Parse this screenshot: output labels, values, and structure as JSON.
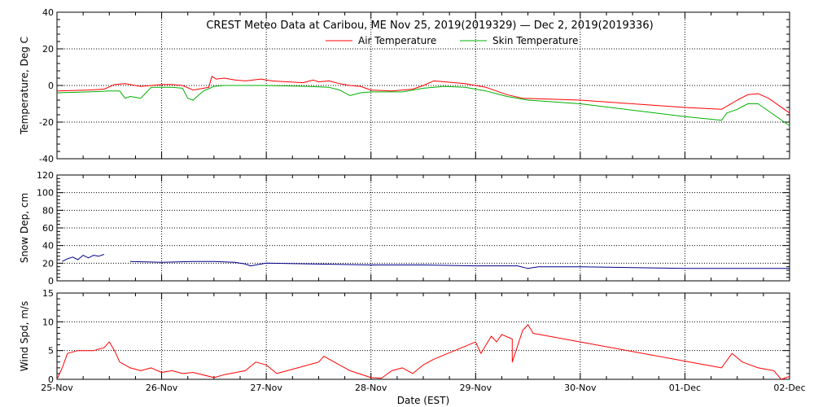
{
  "chart_data": {
    "title": "CREST Meteo Data at Caribou, ME   Nov 25, 2019(2019329) — Dec  2, 2019(2019336)",
    "xlabel": "Date (EST)",
    "x_ticks": [
      "25-Nov",
      "26-Nov",
      "27-Nov",
      "28-Nov",
      "29-Nov",
      "30-Nov",
      "01-Dec",
      "02-Dec"
    ],
    "x_unit": "days since 25-Nov",
    "xlim": [
      0,
      7
    ],
    "colors": {
      "air": "#ff0000",
      "skin": "#00b000",
      "snow": "#00008b",
      "wind": "#ff0000",
      "grid": "#000000"
    },
    "panels": [
      {
        "id": "temperature",
        "type": "line",
        "ylabel": "Temperature, Deg C",
        "ylim": [
          -40,
          40
        ],
        "yticks": [
          -40,
          -20,
          0,
          20,
          40
        ],
        "legend": "top-center",
        "series": [
          {
            "name": "Air Temperature",
            "color": "#ff0000",
            "points": [
              [
                0,
                -3
              ],
              [
                0.3,
                -2.5
              ],
              [
                0.45,
                -2
              ],
              [
                0.55,
                0.5
              ],
              [
                0.65,
                1
              ],
              [
                0.8,
                -0.5
              ],
              [
                0.9,
                0
              ],
              [
                1.0,
                0.5
              ],
              [
                1.1,
                0.5
              ],
              [
                1.2,
                0
              ],
              [
                1.3,
                -2.5
              ],
              [
                1.45,
                -1
              ],
              [
                1.48,
                5
              ],
              [
                1.52,
                3.5
              ],
              [
                1.6,
                4
              ],
              [
                1.7,
                3
              ],
              [
                1.8,
                2.5
              ],
              [
                1.95,
                3.5
              ],
              [
                2.05,
                2.5
              ],
              [
                2.2,
                2
              ],
              [
                2.35,
                1.5
              ],
              [
                2.45,
                3
              ],
              [
                2.5,
                2
              ],
              [
                2.6,
                2.5
              ],
              [
                2.7,
                1
              ],
              [
                2.8,
                0
              ],
              [
                2.9,
                -0.5
              ],
              [
                3.0,
                -2.5
              ],
              [
                3.2,
                -3
              ],
              [
                3.4,
                -2
              ],
              [
                3.5,
                0
              ],
              [
                3.6,
                2.5
              ],
              [
                3.7,
                2
              ],
              [
                3.8,
                1.5
              ],
              [
                3.9,
                1
              ],
              [
                4.0,
                0
              ],
              [
                4.1,
                -1
              ],
              [
                4.2,
                -3
              ],
              [
                4.3,
                -5
              ],
              [
                4.45,
                -7
              ],
              [
                5.0,
                -8
              ],
              [
                6.0,
                -12
              ],
              [
                6.35,
                -13
              ],
              [
                6.5,
                -8
              ],
              [
                6.6,
                -5
              ],
              [
                6.7,
                -4.5
              ],
              [
                6.8,
                -7
              ],
              [
                6.9,
                -11
              ],
              [
                7.0,
                -15
              ]
            ]
          },
          {
            "name": "Skin Temperature",
            "color": "#00b000",
            "points": [
              [
                0,
                -4
              ],
              [
                0.3,
                -3.5
              ],
              [
                0.5,
                -3
              ],
              [
                0.6,
                -3
              ],
              [
                0.65,
                -7
              ],
              [
                0.7,
                -6
              ],
              [
                0.8,
                -7
              ],
              [
                0.85,
                -4
              ],
              [
                0.9,
                -1
              ],
              [
                1.0,
                -1
              ],
              [
                1.1,
                -1
              ],
              [
                1.2,
                -1.5
              ],
              [
                1.25,
                -7
              ],
              [
                1.3,
                -8
              ],
              [
                1.4,
                -3
              ],
              [
                1.5,
                -0.5
              ],
              [
                1.6,
                0
              ],
              [
                2.0,
                0
              ],
              [
                2.4,
                -0.5
              ],
              [
                2.6,
                -1
              ],
              [
                2.7,
                -2.5
              ],
              [
                2.8,
                -5.5
              ],
              [
                2.9,
                -4
              ],
              [
                3.0,
                -3.5
              ],
              [
                3.3,
                -3.5
              ],
              [
                3.5,
                -1.5
              ],
              [
                3.7,
                -0.5
              ],
              [
                3.9,
                -1
              ],
              [
                4.0,
                -2
              ],
              [
                4.1,
                -3
              ],
              [
                4.2,
                -4.5
              ],
              [
                4.3,
                -6
              ],
              [
                4.5,
                -8
              ],
              [
                5.0,
                -10
              ],
              [
                6.0,
                -17
              ],
              [
                6.35,
                -19
              ],
              [
                6.4,
                -15
              ],
              [
                6.5,
                -13
              ],
              [
                6.6,
                -10
              ],
              [
                6.7,
                -10
              ],
              [
                6.8,
                -14
              ],
              [
                6.9,
                -18
              ],
              [
                7.0,
                -22
              ]
            ]
          }
        ]
      },
      {
        "id": "snow",
        "type": "line",
        "ylabel": "Snow Dep, cm",
        "ylim": [
          0,
          120
        ],
        "yticks": [
          0,
          20,
          40,
          60,
          80,
          100,
          120
        ],
        "series": [
          {
            "name": "",
            "color": "#00008b",
            "points": [
              [
                0.05,
                22
              ],
              [
                0.1,
                25
              ],
              [
                0.15,
                27
              ],
              [
                0.2,
                24
              ],
              [
                0.25,
                29
              ],
              [
                0.3,
                26
              ],
              [
                0.35,
                29
              ],
              [
                0.4,
                28
              ],
              [
                0.45,
                30
              ]
            ]
          },
          {
            "name": "",
            "color": "#00008b",
            "points": [
              [
                0.7,
                22
              ],
              [
                1.0,
                21
              ],
              [
                1.3,
                22
              ],
              [
                1.5,
                22
              ],
              [
                1.7,
                21
              ],
              [
                1.8,
                19
              ],
              [
                1.85,
                17
              ],
              [
                1.9,
                18
              ],
              [
                2.0,
                20
              ],
              [
                2.5,
                19
              ],
              [
                3.0,
                18
              ],
              [
                3.5,
                18
              ],
              [
                4.0,
                17
              ],
              [
                4.4,
                17
              ],
              [
                4.5,
                14
              ],
              [
                4.6,
                16
              ],
              [
                5.0,
                16
              ],
              [
                5.5,
                15
              ],
              [
                6.0,
                14
              ],
              [
                6.5,
                14
              ],
              [
                7.0,
                14
              ]
            ]
          }
        ]
      },
      {
        "id": "wind",
        "type": "line",
        "ylabel": "Wind Spd, m/s",
        "ylim": [
          0,
          15
        ],
        "yticks": [
          0,
          5,
          10,
          15
        ],
        "series": [
          {
            "name": "",
            "color": "#ff0000",
            "points": [
              [
                0,
                0
              ],
              [
                0.05,
                2
              ],
              [
                0.1,
                4.5
              ],
              [
                0.2,
                5
              ],
              [
                0.35,
                5
              ],
              [
                0.45,
                5.5
              ],
              [
                0.5,
                6.5
              ],
              [
                0.55,
                5
              ],
              [
                0.6,
                3
              ],
              [
                0.7,
                2
              ],
              [
                0.8,
                1.5
              ],
              [
                0.9,
                2
              ],
              [
                1.0,
                1.2
              ],
              [
                1.1,
                1.5
              ],
              [
                1.2,
                1
              ],
              [
                1.3,
                1.2
              ],
              [
                1.5,
                0.3
              ],
              [
                1.6,
                0.8
              ],
              [
                1.8,
                1.5
              ],
              [
                1.9,
                3
              ],
              [
                2.0,
                2.5
              ],
              [
                2.1,
                1
              ],
              [
                2.3,
                2
              ],
              [
                2.5,
                3
              ],
              [
                2.55,
                4
              ],
              [
                2.65,
                3
              ],
              [
                2.8,
                1.5
              ],
              [
                3.0,
                0.3
              ],
              [
                3.1,
                0.2
              ],
              [
                3.2,
                1.5
              ],
              [
                3.3,
                2
              ],
              [
                3.4,
                1
              ],
              [
                3.5,
                2.5
              ],
              [
                3.6,
                3.5
              ],
              [
                3.8,
                5
              ],
              [
                4.0,
                6.5
              ],
              [
                4.05,
                4.5
              ],
              [
                4.1,
                6
              ],
              [
                4.15,
                7.5
              ],
              [
                4.2,
                6.5
              ],
              [
                4.25,
                7.8
              ],
              [
                4.35,
                7
              ],
              [
                4.35,
                3
              ],
              [
                4.45,
                8.5
              ],
              [
                4.5,
                9.5
              ],
              [
                4.55,
                8
              ],
              [
                6.35,
                2
              ],
              [
                6.45,
                4.5
              ],
              [
                6.55,
                3
              ],
              [
                6.7,
                2
              ],
              [
                6.85,
                1.5
              ],
              [
                6.92,
                0
              ],
              [
                7.0,
                0.5
              ]
            ]
          }
        ]
      }
    ]
  }
}
